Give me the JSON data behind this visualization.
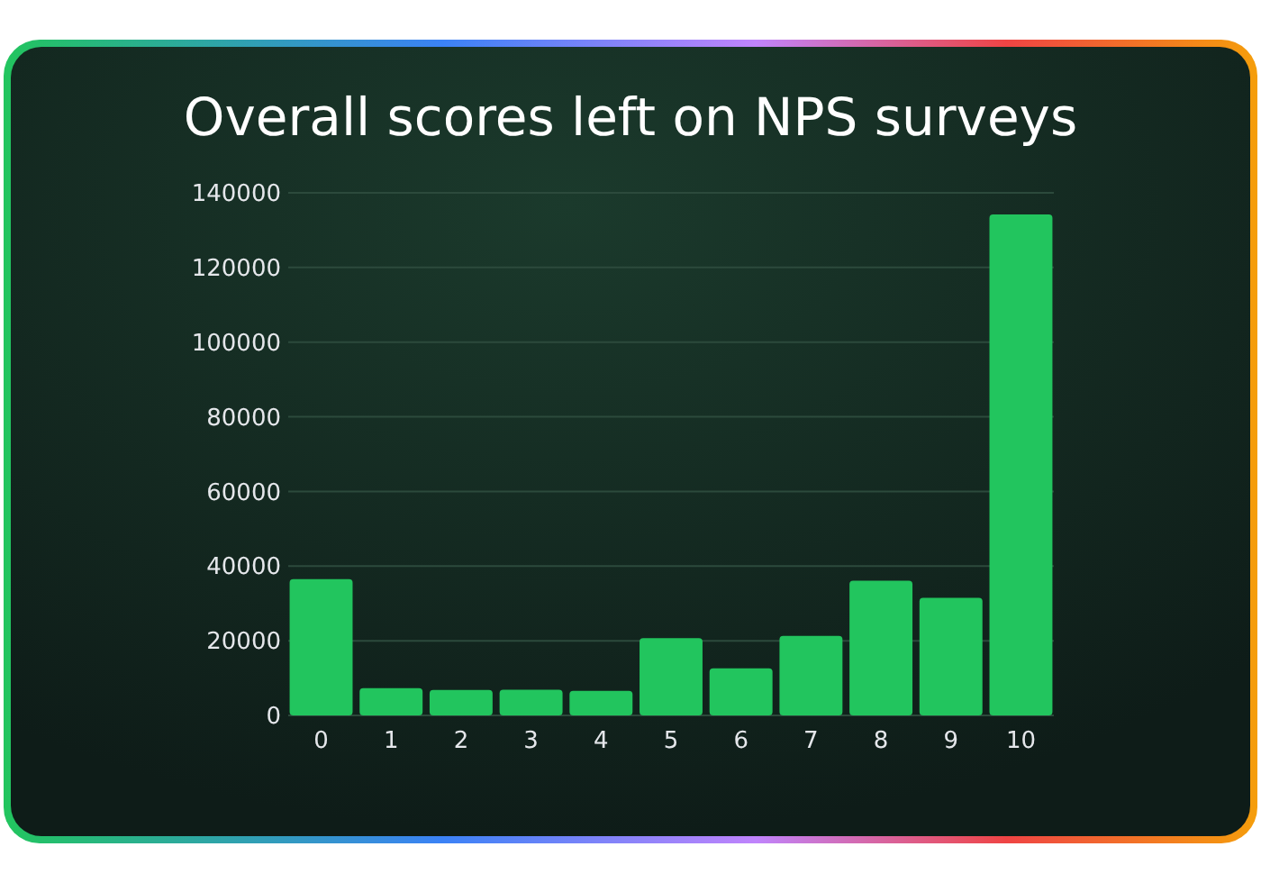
{
  "chart_data": {
    "type": "bar",
    "title": "Overall scores left on NPS surveys",
    "categories": [
      "0",
      "1",
      "2",
      "3",
      "4",
      "5",
      "6",
      "7",
      "8",
      "9",
      "10"
    ],
    "values": [
      36500,
      7300,
      6800,
      6900,
      6600,
      20700,
      12600,
      21300,
      36100,
      31500,
      134200
    ],
    "color": "#22c55e",
    "ylim": [
      0,
      140000
    ],
    "yticks": [
      0,
      20000,
      40000,
      60000,
      80000,
      100000,
      120000,
      140000
    ],
    "grid": "y"
  }
}
